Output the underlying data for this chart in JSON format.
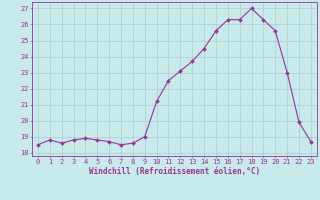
{
  "x": [
    0,
    1,
    2,
    3,
    4,
    5,
    6,
    7,
    8,
    9,
    10,
    11,
    12,
    13,
    14,
    15,
    16,
    17,
    18,
    19,
    20,
    21,
    22,
    23
  ],
  "y": [
    18.5,
    18.8,
    18.6,
    18.8,
    18.9,
    18.8,
    18.7,
    18.5,
    18.6,
    19.0,
    21.2,
    22.5,
    23.1,
    23.7,
    24.5,
    25.6,
    26.3,
    26.3,
    27.0,
    26.3,
    25.6,
    23.0,
    19.9,
    18.7
  ],
  "line_color": "#993399",
  "marker": "D",
  "marker_size": 2.0,
  "bg_color": "#c8eaea",
  "grid_color": "#aacccc",
  "ylabel_values": [
    18,
    19,
    20,
    21,
    22,
    23,
    24,
    25,
    26,
    27
  ],
  "xlabel_values": [
    0,
    1,
    2,
    3,
    4,
    5,
    6,
    7,
    8,
    9,
    10,
    11,
    12,
    13,
    14,
    15,
    16,
    17,
    18,
    19,
    20,
    21,
    22,
    23
  ],
  "xlabel": "Windchill (Refroidissement éolien,°C)",
  "xlim": [
    -0.5,
    23.5
  ],
  "ylim": [
    17.8,
    27.4
  ],
  "axis_color": "#993399",
  "tick_color": "#993399",
  "tick_fontsize": 5.0,
  "xlabel_fontsize": 5.5,
  "linewidth": 0.8
}
